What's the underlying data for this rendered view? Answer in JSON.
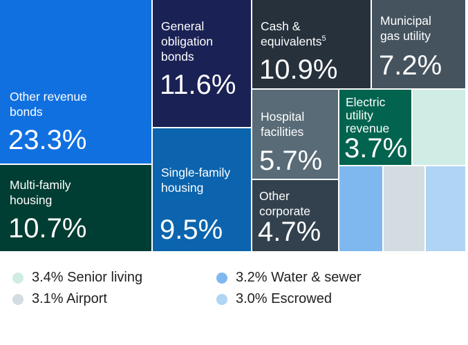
{
  "chart_data": {
    "type": "treemap",
    "title": "",
    "unit": "%",
    "tiles": [
      {
        "label": [
          "Other revenue",
          "bonds"
        ],
        "value": 23.3,
        "color": "#1170e0"
      },
      {
        "label": [
          "Multi-family",
          "housing"
        ],
        "value": 10.7,
        "color": "#003d32"
      },
      {
        "label": [
          "General",
          "obligation",
          "bonds"
        ],
        "value": 11.6,
        "color": "#1a2154"
      },
      {
        "label": [
          "Single-family",
          "housing"
        ],
        "value": 9.5,
        "color": "#0b64ad"
      },
      {
        "label": [
          "Cash &",
          "equivalents"
        ],
        "label_sup": "5",
        "value": 10.9,
        "color": "#26313c"
      },
      {
        "label": [
          "Municipal",
          "gas utility"
        ],
        "value": 7.2,
        "color": "#45535e"
      },
      {
        "label": [
          "Hospital",
          "facilities"
        ],
        "value": 5.7,
        "color": "#586b77"
      },
      {
        "label": [
          "Other",
          "corporate"
        ],
        "value": 4.7,
        "color": "#32414d"
      },
      {
        "label": [
          "Electric",
          "utility",
          "revenue"
        ],
        "value": 3.7,
        "color": "#02634e"
      },
      {
        "label": [],
        "value": 3.4,
        "color": "#cfece5"
      },
      {
        "label": [],
        "value": 3.2,
        "color": "#7fb8ef"
      },
      {
        "label": [],
        "value": 3.1,
        "color": "#d3dce0"
      },
      {
        "label": [],
        "value": 3.0,
        "color": "#afd4f4"
      }
    ],
    "legend": [
      {
        "value": 3.4,
        "label": "Senior living",
        "color": "#cfece5"
      },
      {
        "value": 3.1,
        "label": "Airport",
        "color": "#d3dce0"
      },
      {
        "value": 3.2,
        "label": "Water & sewer",
        "color": "#7fb8ef"
      },
      {
        "value": 3.0,
        "label": "Escrowed",
        "color": "#afd4f4"
      }
    ]
  }
}
